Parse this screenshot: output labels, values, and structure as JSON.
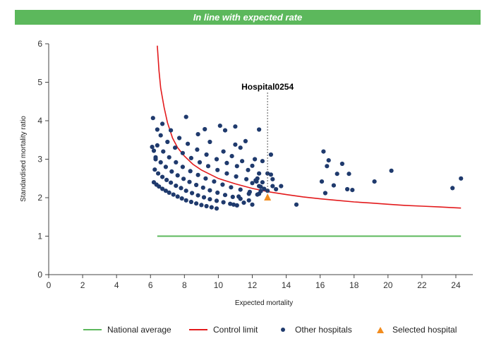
{
  "banner": {
    "text": "In line with expected rate"
  },
  "colors": {
    "banner": "#5cb85c",
    "national": "#5cb85c",
    "control": "#e31a1c",
    "others": "#1f3a6d",
    "selected": "#f28c1e",
    "axis": "#444444"
  },
  "chart_data": {
    "type": "scatter",
    "xlabel": "Expected mortality",
    "ylabel": "Standardised mortality ratio",
    "xlim": [
      0,
      25
    ],
    "ylim": [
      0,
      6
    ],
    "xticks": [
      0,
      2,
      4,
      6,
      8,
      10,
      12,
      14,
      16,
      18,
      20,
      22,
      24
    ],
    "yticks": [
      0,
      1,
      2,
      3,
      4,
      5,
      6
    ],
    "grid": false,
    "legend_position": "bottom",
    "legend": {
      "national": "National average",
      "control": "Control limit",
      "others": "Other hospitals",
      "selected": "Selected hospital"
    },
    "national_average": {
      "value": 1,
      "x_start": 6.4,
      "x_end": 24.3
    },
    "control_limit": [
      [
        6.4,
        5.95
      ],
      [
        6.5,
        5.3
      ],
      [
        6.6,
        4.85
      ],
      [
        6.8,
        4.35
      ],
      [
        7.0,
        3.95
      ],
      [
        7.3,
        3.55
      ],
      [
        7.6,
        3.3
      ],
      [
        8.0,
        3.08
      ],
      [
        8.5,
        2.87
      ],
      [
        9.0,
        2.72
      ],
      [
        10.0,
        2.5
      ],
      [
        11.0,
        2.36
      ],
      [
        12.0,
        2.24
      ],
      [
        13.0,
        2.15
      ],
      [
        14.0,
        2.08
      ],
      [
        15.0,
        2.02
      ],
      [
        16.0,
        1.97
      ],
      [
        17.0,
        1.93
      ],
      [
        18.0,
        1.89
      ],
      [
        19.0,
        1.86
      ],
      [
        20.0,
        1.83
      ],
      [
        21.0,
        1.8
      ],
      [
        22.0,
        1.78
      ],
      [
        23.0,
        1.76
      ],
      [
        24.3,
        1.73
      ]
    ],
    "selected_hospital": {
      "name": "Hospital0254",
      "x": 12.9,
      "y": 2.0
    },
    "other_hospitals": [
      [
        6.2,
        2.4
      ],
      [
        6.35,
        2.34
      ],
      [
        6.5,
        2.29
      ],
      [
        6.7,
        2.23
      ],
      [
        6.9,
        2.18
      ],
      [
        7.1,
        2.13
      ],
      [
        7.35,
        2.08
      ],
      [
        7.6,
        2.03
      ],
      [
        7.85,
        1.98
      ],
      [
        8.1,
        1.93
      ],
      [
        8.4,
        1.89
      ],
      [
        8.7,
        1.85
      ],
      [
        9.0,
        1.81
      ],
      [
        9.3,
        1.78
      ],
      [
        9.6,
        1.75
      ],
      [
        9.9,
        1.72
      ],
      [
        6.25,
        2.73
      ],
      [
        6.45,
        2.63
      ],
      [
        6.7,
        2.54
      ],
      [
        6.95,
        2.46
      ],
      [
        7.2,
        2.39
      ],
      [
        7.5,
        2.31
      ],
      [
        7.8,
        2.25
      ],
      [
        8.1,
        2.18
      ],
      [
        8.45,
        2.12
      ],
      [
        8.8,
        2.06
      ],
      [
        9.15,
        2.01
      ],
      [
        9.5,
        1.96
      ],
      [
        9.9,
        1.92
      ],
      [
        10.3,
        1.88
      ],
      [
        10.7,
        1.84
      ],
      [
        11.1,
        1.8
      ],
      [
        6.3,
        3.05
      ],
      [
        6.6,
        2.92
      ],
      [
        6.9,
        2.8
      ],
      [
        7.25,
        2.68
      ],
      [
        7.6,
        2.58
      ],
      [
        7.95,
        2.49
      ],
      [
        8.3,
        2.41
      ],
      [
        8.7,
        2.33
      ],
      [
        9.1,
        2.26
      ],
      [
        9.5,
        2.19
      ],
      [
        9.95,
        2.13
      ],
      [
        10.4,
        2.07
      ],
      [
        10.85,
        2.02
      ],
      [
        11.3,
        1.97
      ],
      [
        11.8,
        1.93
      ],
      [
        6.4,
        3.36
      ],
      [
        6.75,
        3.2
      ],
      [
        7.1,
        3.05
      ],
      [
        7.5,
        2.92
      ],
      [
        7.9,
        2.8
      ],
      [
        8.35,
        2.69
      ],
      [
        8.8,
        2.59
      ],
      [
        9.25,
        2.5
      ],
      [
        9.75,
        2.42
      ],
      [
        10.25,
        2.34
      ],
      [
        10.75,
        2.27
      ],
      [
        11.3,
        2.21
      ],
      [
        11.85,
        2.15
      ],
      [
        12.4,
        2.1
      ],
      [
        6.6,
        3.62
      ],
      [
        7.0,
        3.45
      ],
      [
        7.45,
        3.3
      ],
      [
        7.9,
        3.16
      ],
      [
        8.4,
        3.03
      ],
      [
        8.9,
        2.92
      ],
      [
        9.4,
        2.82
      ],
      [
        9.95,
        2.72
      ],
      [
        10.5,
        2.63
      ],
      [
        11.05,
        2.55
      ],
      [
        11.65,
        2.48
      ],
      [
        12.25,
        2.42
      ],
      [
        7.2,
        3.75
      ],
      [
        7.7,
        3.55
      ],
      [
        8.2,
        3.4
      ],
      [
        8.75,
        3.25
      ],
      [
        9.3,
        3.12
      ],
      [
        9.9,
        3.0
      ],
      [
        10.5,
        2.9
      ],
      [
        11.1,
        2.82
      ],
      [
        11.75,
        2.72
      ],
      [
        12.4,
        2.63
      ],
      [
        6.15,
        4.07
      ],
      [
        6.4,
        3.77
      ],
      [
        6.7,
        3.92
      ],
      [
        8.1,
        4.1
      ],
      [
        10.1,
        3.87
      ],
      [
        10.4,
        3.75
      ],
      [
        11.0,
        3.85
      ],
      [
        12.4,
        3.77
      ],
      [
        8.8,
        3.65
      ],
      [
        9.2,
        3.78
      ],
      [
        9.5,
        3.45
      ],
      [
        10.3,
        3.2
      ],
      [
        11.3,
        3.3
      ],
      [
        11.6,
        3.47
      ],
      [
        10.8,
        3.08
      ],
      [
        11.4,
        2.95
      ],
      [
        12.0,
        2.83
      ],
      [
        12.3,
        2.5
      ],
      [
        12.6,
        2.95
      ],
      [
        13.1,
        3.12
      ],
      [
        12.15,
        3.0
      ],
      [
        11.0,
        3.38
      ],
      [
        6.1,
        3.32
      ],
      [
        6.2,
        3.22
      ],
      [
        6.3,
        3.0
      ],
      [
        12.0,
        2.38
      ],
      [
        12.4,
        2.3
      ],
      [
        12.7,
        2.23
      ],
      [
        12.9,
        2.18
      ],
      [
        12.9,
        2.63
      ],
      [
        13.1,
        2.6
      ],
      [
        13.2,
        2.48
      ],
      [
        13.2,
        2.3
      ],
      [
        13.4,
        2.22
      ],
      [
        13.7,
        2.3
      ],
      [
        12.5,
        2.17
      ],
      [
        12.3,
        2.08
      ],
      [
        11.8,
        2.1
      ],
      [
        11.2,
        2.03
      ],
      [
        10.9,
        1.82
      ],
      [
        11.5,
        1.87
      ],
      [
        12.0,
        1.82
      ],
      [
        12.2,
        2.45
      ],
      [
        12.6,
        2.4
      ],
      [
        12.5,
        2.28
      ],
      [
        14.6,
        1.82
      ],
      [
        16.2,
        3.2
      ],
      [
        16.5,
        2.97
      ],
      [
        16.4,
        2.82
      ],
      [
        16.1,
        2.42
      ],
      [
        16.3,
        2.12
      ],
      [
        16.8,
        2.32
      ],
      [
        17.0,
        2.62
      ],
      [
        17.3,
        2.88
      ],
      [
        17.7,
        2.62
      ],
      [
        17.6,
        2.22
      ],
      [
        17.9,
        2.2
      ],
      [
        19.2,
        2.42
      ],
      [
        20.2,
        2.7
      ],
      [
        23.8,
        2.25
      ],
      [
        24.3,
        2.5
      ]
    ]
  }
}
